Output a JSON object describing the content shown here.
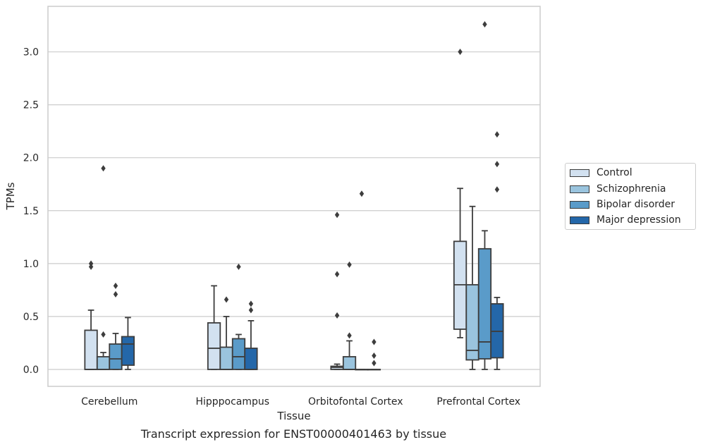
{
  "caption": "Transcript expression for ENST00000401463 by tissue",
  "chart_data": {
    "type": "box",
    "xlabel": "Tissue",
    "ylabel": "TPMs",
    "ylim": [
      -0.16,
      3.43
    ],
    "yticks": [
      "0.0",
      "0.5",
      "1.0",
      "1.5",
      "2.0",
      "2.5",
      "3.0"
    ],
    "grid": true,
    "legend_position": "right",
    "categories": [
      "Cerebellum",
      "Hipppocampus",
      "Orbitofontal Cortex",
      "Prefrontal Cortex"
    ],
    "series": [
      {
        "name": "Control",
        "color": "#d2e1f0",
        "boxes": [
          {
            "whisker_low": 0.0,
            "q1": 0.0,
            "median": 0.0,
            "q3": 0.37,
            "whisker_high": 0.56,
            "outliers": [
              0.97,
              1.0
            ]
          },
          {
            "whisker_low": 0.0,
            "q1": 0.0,
            "median": 0.2,
            "q3": 0.44,
            "whisker_high": 0.79,
            "outliers": []
          },
          {
            "whisker_low": 0.0,
            "q1": 0.0,
            "median": 0.02,
            "q3": 0.03,
            "whisker_high": 0.05,
            "outliers": [
              0.51,
              0.9,
              1.46
            ]
          },
          {
            "whisker_low": 0.3,
            "q1": 0.38,
            "median": 0.8,
            "q3": 1.21,
            "whisker_high": 1.71,
            "outliers": [
              3.0
            ]
          }
        ]
      },
      {
        "name": "Schizophrenia",
        "color": "#9ac4de",
        "boxes": [
          {
            "whisker_low": 0.0,
            "q1": 0.0,
            "median": 0.0,
            "q3": 0.12,
            "whisker_high": 0.16,
            "outliers": [
              0.33,
              1.9
            ]
          },
          {
            "whisker_low": 0.0,
            "q1": 0.0,
            "median": 0.0,
            "q3": 0.21,
            "whisker_high": 0.5,
            "outliers": [
              0.66
            ]
          },
          {
            "whisker_low": 0.0,
            "q1": 0.0,
            "median": 0.0,
            "q3": 0.12,
            "whisker_high": 0.27,
            "outliers": [
              0.32,
              0.99
            ]
          },
          {
            "whisker_low": 0.0,
            "q1": 0.09,
            "median": 0.18,
            "q3": 0.8,
            "whisker_high": 1.54,
            "outliers": []
          }
        ]
      },
      {
        "name": "Bipolar disorder",
        "color": "#5a9bc9",
        "boxes": [
          {
            "whisker_low": 0.0,
            "q1": 0.0,
            "median": 0.1,
            "q3": 0.24,
            "whisker_high": 0.34,
            "outliers": [
              0.71,
              0.79
            ]
          },
          {
            "whisker_low": 0.0,
            "q1": 0.0,
            "median": 0.12,
            "q3": 0.29,
            "whisker_high": 0.33,
            "outliers": [
              0.97
            ]
          },
          {
            "whisker_low": 0.0,
            "q1": 0.0,
            "median": 0.0,
            "q3": 0.0,
            "whisker_high": 0.0,
            "outliers": [
              1.66
            ]
          },
          {
            "whisker_low": 0.0,
            "q1": 0.1,
            "median": 0.26,
            "q3": 1.14,
            "whisker_high": 1.31,
            "outliers": [
              3.26
            ]
          }
        ]
      },
      {
        "name": "Major depression",
        "color": "#2467a9",
        "boxes": [
          {
            "whisker_low": 0.0,
            "q1": 0.04,
            "median": 0.24,
            "q3": 0.31,
            "whisker_high": 0.49,
            "outliers": []
          },
          {
            "whisker_low": 0.0,
            "q1": 0.0,
            "median": 0.0,
            "q3": 0.2,
            "whisker_high": 0.46,
            "outliers": [
              0.56,
              0.62
            ]
          },
          {
            "whisker_low": 0.0,
            "q1": 0.0,
            "median": 0.0,
            "q3": 0.0,
            "whisker_high": 0.0,
            "outliers": [
              0.06,
              0.13,
              0.26
            ]
          },
          {
            "whisker_low": 0.0,
            "q1": 0.11,
            "median": 0.36,
            "q3": 0.62,
            "whisker_high": 0.68,
            "outliers": [
              1.7,
              1.94,
              2.22
            ]
          }
        ]
      }
    ]
  }
}
